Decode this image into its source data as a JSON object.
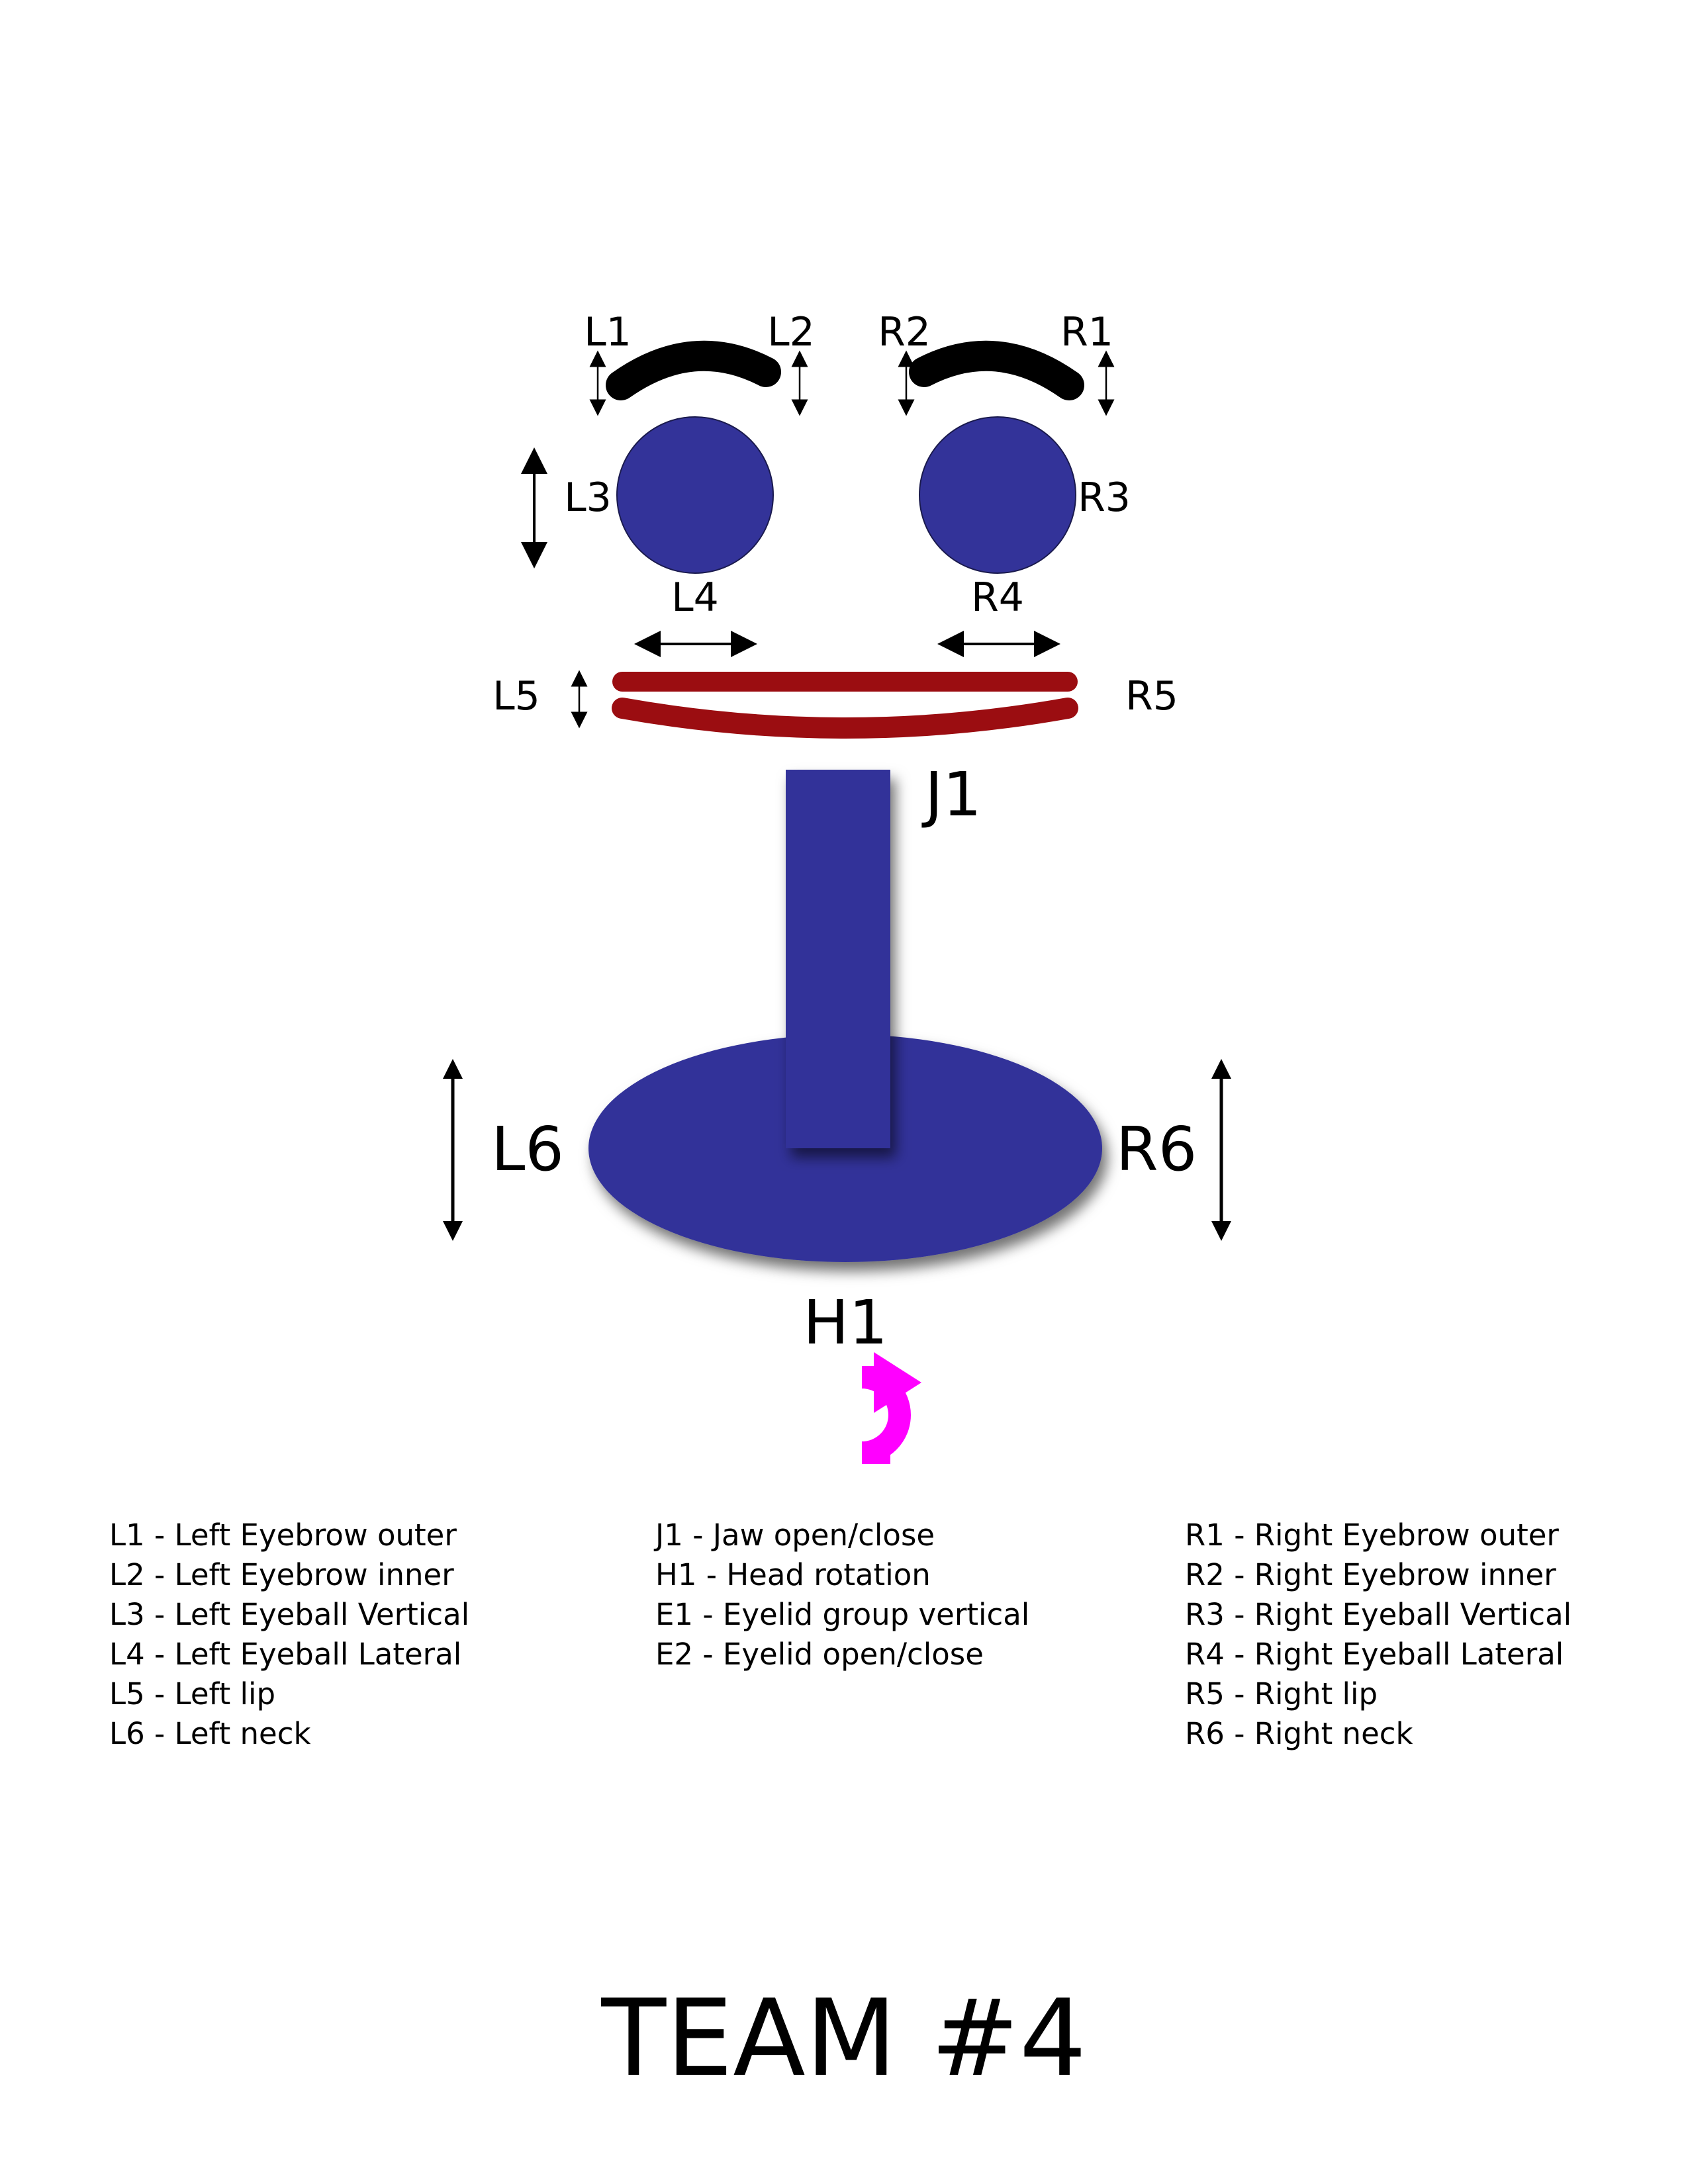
{
  "colors": {
    "eyebrow": "#000000",
    "eyeball": "#333399",
    "lip": "#9b0d11",
    "neck": "#333399",
    "rotation_arrow": "#ff00ff",
    "arrows": "#000000"
  },
  "diagram": {
    "labels": {
      "L1": "L1",
      "L2": "L2",
      "R2": "R2",
      "R1": "R1",
      "L3": "L3",
      "R3": "R3",
      "L4": "L4",
      "R4": "R4",
      "L5": "L5",
      "R5": "R5",
      "J1": "J1",
      "L6": "L6",
      "R6": "R6",
      "H1": "H1"
    }
  },
  "legend": {
    "left": [
      "L1 - Left Eyebrow outer",
      "L2 - Left Eyebrow inner",
      "L3 - Left Eyeball Vertical",
      "L4 - Left Eyeball Lateral",
      "L5 - Left lip",
      "L6 - Left neck"
    ],
    "center": [
      "J1 - Jaw open/close",
      "H1 - Head rotation",
      "E1 - Eyelid group vertical",
      "E2 - Eyelid open/close"
    ],
    "right": [
      "R1 - Right Eyebrow outer",
      "R2 - Right Eyebrow inner",
      "R3 - Right Eyeball Vertical",
      "R4 - Right Eyeball Lateral",
      "R5 - Right lip",
      "R6 - Right neck"
    ]
  },
  "title": "TEAM #4"
}
